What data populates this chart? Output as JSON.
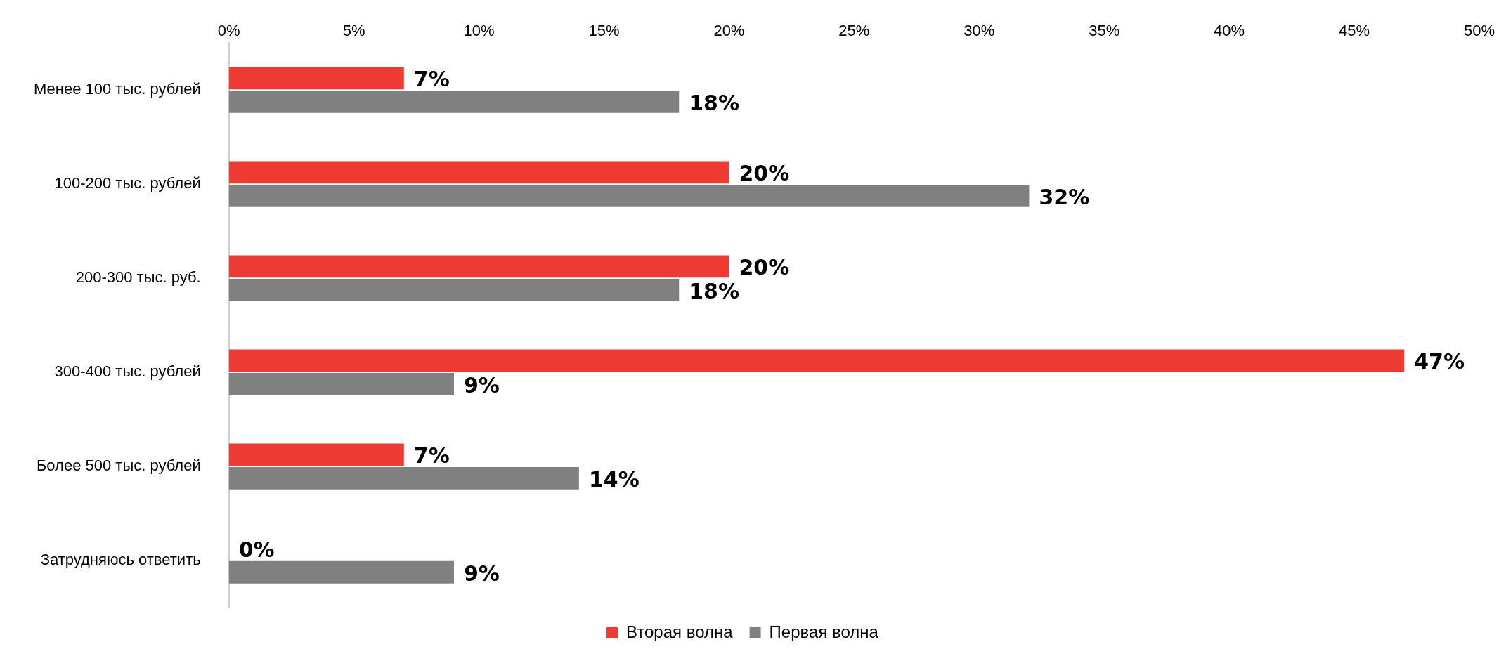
{
  "chart_data": {
    "type": "bar",
    "orientation": "horizontal",
    "categories": [
      "Менее 100 тыс. рублей",
      "100-200 тыс. рублей",
      "200-300 тыс. руб.",
      "300-400 тыс. рублей",
      "Более 500 тыс. рублей",
      "Затрудняюсь ответить"
    ],
    "series": [
      {
        "name": "Вторая волна",
        "color": "#ee3a33",
        "values": [
          7,
          20,
          20,
          47,
          7,
          0
        ],
        "value_labels": [
          "7%",
          "20%",
          "20%",
          "47%",
          "7%",
          "0%"
        ]
      },
      {
        "name": "Первая волна",
        "color": "#808080",
        "values": [
          18,
          32,
          18,
          9,
          14,
          9
        ],
        "value_labels": [
          "18%",
          "32%",
          "18%",
          "9%",
          "14%",
          "9%"
        ]
      }
    ],
    "xlim": [
      0,
      50
    ],
    "xticks": [
      {
        "value": 0,
        "label": "0%"
      },
      {
        "value": 5,
        "label": "5%"
      },
      {
        "value": 10,
        "label": "10%"
      },
      {
        "value": 15,
        "label": "15%"
      },
      {
        "value": 20,
        "label": "20%"
      },
      {
        "value": 25,
        "label": "25%"
      },
      {
        "value": 30,
        "label": "30%"
      },
      {
        "value": 35,
        "label": "35%"
      },
      {
        "value": 40,
        "label": "40%"
      },
      {
        "value": 45,
        "label": "45%"
      },
      {
        "value": 50,
        "label": "50%"
      }
    ],
    "grid": false,
    "legend": "bottom"
  }
}
